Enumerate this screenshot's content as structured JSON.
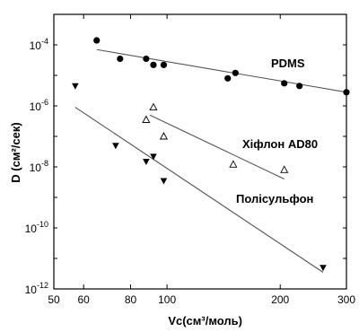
{
  "chart_data": {
    "type": "scatter",
    "xlabel": "Vc(см³/моль)",
    "ylabel": "D (см²/сек)",
    "x_scale": "log",
    "y_scale": "log",
    "xlim": [
      50,
      300
    ],
    "ylim": [
      1e-12,
      0.001
    ],
    "x_ticks": [
      {
        "value": 50,
        "label": "50"
      },
      {
        "value": 60,
        "label": "60"
      },
      {
        "value": 80,
        "label": "80"
      },
      {
        "value": 100,
        "label": "100"
      },
      {
        "value": 200,
        "label": "200"
      },
      {
        "value": 300,
        "label": "300"
      }
    ],
    "y_ticks": [
      {
        "value": 1e-12,
        "base": "10",
        "exp": "-12"
      },
      {
        "value": 1e-10,
        "base": "10",
        "exp": "-10"
      },
      {
        "value": 1e-08,
        "base": "10",
        "exp": "-8"
      },
      {
        "value": 1e-06,
        "base": "10",
        "exp": "-6"
      },
      {
        "value": 0.0001,
        "base": "10",
        "exp": "-4"
      }
    ],
    "series": [
      {
        "name": "PDMS",
        "marker": "circle-filled",
        "points": [
          [
            65,
            0.00014
          ],
          [
            75,
            3.5e-05
          ],
          [
            88,
            3.5e-05
          ],
          [
            92,
            2.2e-05
          ],
          [
            98,
            2.2e-05
          ],
          [
            145,
            8e-06
          ],
          [
            152,
            1.2e-05
          ],
          [
            205,
            5.5e-06
          ],
          [
            225,
            4.5e-06
          ],
          [
            300,
            2.8e-06
          ]
        ],
        "fit": [
          [
            65,
            7e-05
          ],
          [
            300,
            2.8e-06
          ]
        ]
      },
      {
        "name": "Хіфлон AD80",
        "marker": "triangle-open",
        "points": [
          [
            88,
            3.5e-07
          ],
          [
            92,
            9e-07
          ],
          [
            98,
            1e-07
          ],
          [
            150,
            1.2e-08
          ],
          [
            205,
            8e-09
          ]
        ],
        "fit": [
          [
            90,
            5e-07
          ],
          [
            205,
            4e-09
          ]
        ]
      },
      {
        "name": "Полісульфон",
        "marker": "triangle-filled",
        "points": [
          [
            57,
            4.5e-06
          ],
          [
            73,
            5e-08
          ],
          [
            88,
            1.5e-08
          ],
          [
            92,
            2.2e-08
          ],
          [
            98,
            3.5e-09
          ],
          [
            260,
            5e-12
          ]
        ],
        "fit": [
          [
            57,
            9e-07
          ],
          [
            260,
            3.5e-12
          ]
        ]
      }
    ],
    "colors": {
      "marker": "#000000",
      "line": "#555555",
      "axis": "#000000"
    }
  }
}
